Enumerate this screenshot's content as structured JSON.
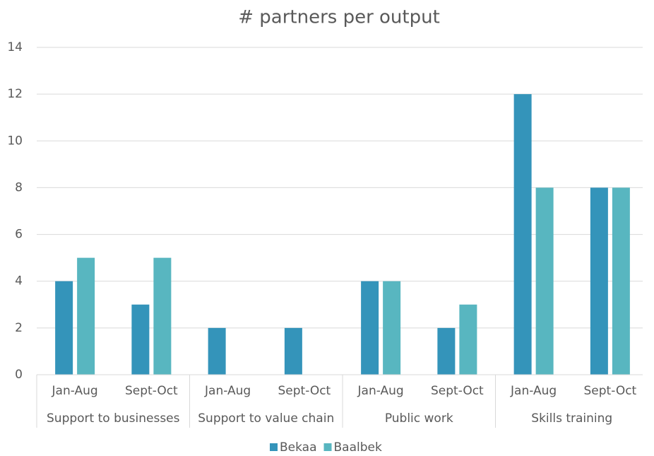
{
  "chart_data": {
    "type": "bar",
    "title": "# partners per output",
    "categories": [
      "Jan-Aug",
      "Sept-Oct",
      "Jan-Aug",
      "Sept-Oct",
      "Jan-Aug",
      "Sept-Oct",
      "Jan-Aug",
      "Sept-Oct"
    ],
    "groups": [
      "Support to businesses",
      "Support to value chain",
      "Public work",
      "Skills training"
    ],
    "series": [
      {
        "name": "Bekaa",
        "color": "#3494ba",
        "values": [
          4,
          3,
          2,
          2,
          4,
          2,
          12,
          8
        ]
      },
      {
        "name": "Baalbek",
        "color": "#58b6c0",
        "values": [
          5,
          5,
          0,
          0,
          4,
          3,
          8,
          8
        ]
      }
    ],
    "ylim": [
      0,
      14
    ],
    "yticks": [
      0,
      2,
      4,
      6,
      8,
      10,
      12,
      14
    ],
    "grid": true,
    "legend": "bottom"
  }
}
